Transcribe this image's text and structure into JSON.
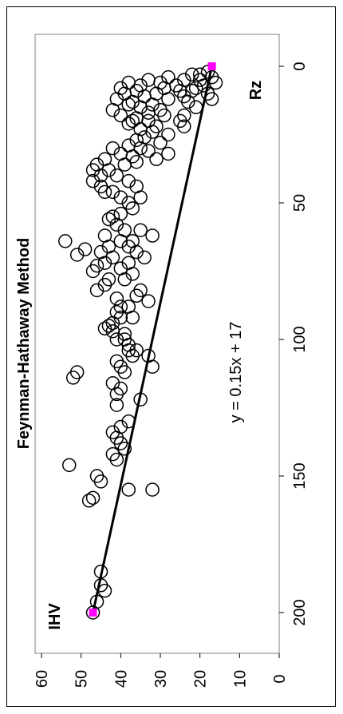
{
  "chart_data": {
    "type": "scatter",
    "title": "Feynman-Hathaway Method",
    "xlabel": "Rz",
    "ylabel": "IHV",
    "xlim": [
      0,
      200
    ],
    "ylim": [
      0,
      60
    ],
    "x_ticks": [
      "0",
      "50",
      "100",
      "150",
      "200"
    ],
    "y_ticks": [
      "0",
      "10",
      "20",
      "30",
      "40",
      "50",
      "60"
    ],
    "annotation": "y = 0.15x + 17",
    "trendline": {
      "slope": 0.15,
      "intercept": 17,
      "x_range": [
        0,
        200
      ]
    },
    "trend_endpoints": [
      {
        "x": 0,
        "y": 17
      },
      {
        "x": 200,
        "y": 47
      }
    ],
    "colors": {
      "points": "#000000",
      "trendline": "#000000",
      "endpoints": "#ff00ff"
    },
    "points": [
      [
        2,
        18
      ],
      [
        3,
        20
      ],
      [
        4,
        17
      ],
      [
        5,
        20
      ],
      [
        6,
        16
      ],
      [
        7,
        19
      ],
      [
        8,
        21
      ],
      [
        9,
        22
      ],
      [
        10,
        18
      ],
      [
        12,
        17
      ],
      [
        3,
        22
      ],
      [
        5,
        24
      ],
      [
        7,
        26
      ],
      [
        9,
        25
      ],
      [
        11,
        24
      ],
      [
        13,
        23
      ],
      [
        15,
        21
      ],
      [
        18,
        24
      ],
      [
        20,
        25
      ],
      [
        22,
        24
      ],
      [
        4,
        28
      ],
      [
        6,
        30
      ],
      [
        8,
        29
      ],
      [
        10,
        31
      ],
      [
        12,
        28
      ],
      [
        14,
        32
      ],
      [
        16,
        30
      ],
      [
        18,
        29
      ],
      [
        20,
        33
      ],
      [
        22,
        31
      ],
      [
        5,
        33
      ],
      [
        7,
        35
      ],
      [
        9,
        36
      ],
      [
        11,
        34
      ],
      [
        13,
        37
      ],
      [
        15,
        35
      ],
      [
        17,
        33
      ],
      [
        19,
        36
      ],
      [
        21,
        38
      ],
      [
        23,
        35
      ],
      [
        6,
        38
      ],
      [
        8,
        40
      ],
      [
        10,
        39
      ],
      [
        12,
        41
      ],
      [
        14,
        38
      ],
      [
        16,
        42
      ],
      [
        18,
        40
      ],
      [
        20,
        37
      ],
      [
        24,
        32
      ],
      [
        25,
        28
      ],
      [
        26,
        34
      ],
      [
        27,
        36
      ],
      [
        28,
        30
      ],
      [
        29,
        38
      ],
      [
        30,
        35
      ],
      [
        31,
        33
      ],
      [
        32,
        28
      ],
      [
        33,
        37
      ],
      [
        34,
        31
      ],
      [
        35,
        36
      ],
      [
        30,
        42
      ],
      [
        32,
        40
      ],
      [
        34,
        44
      ],
      [
        36,
        39
      ],
      [
        38,
        43
      ],
      [
        40,
        41
      ],
      [
        42,
        38
      ],
      [
        44,
        36
      ],
      [
        46,
        42
      ],
      [
        48,
        40
      ],
      [
        36,
        46
      ],
      [
        38,
        47
      ],
      [
        40,
        45
      ],
      [
        42,
        47
      ],
      [
        44,
        45
      ],
      [
        46,
        44
      ],
      [
        48,
        35
      ],
      [
        50,
        38
      ],
      [
        52,
        37
      ],
      [
        54,
        40
      ],
      [
        55,
        42
      ],
      [
        56,
        43
      ],
      [
        58,
        41
      ],
      [
        60,
        39
      ],
      [
        62,
        44
      ],
      [
        64,
        40
      ],
      [
        66,
        43
      ],
      [
        68,
        45
      ],
      [
        70,
        42
      ],
      [
        72,
        44
      ],
      [
        60,
        35
      ],
      [
        62,
        32
      ],
      [
        64,
        37
      ],
      [
        66,
        38
      ],
      [
        68,
        36
      ],
      [
        70,
        34
      ],
      [
        72,
        38
      ],
      [
        74,
        40
      ],
      [
        76,
        37
      ],
      [
        78,
        39
      ],
      [
        64,
        54
      ],
      [
        67,
        49
      ],
      [
        69,
        51
      ],
      [
        73,
        46
      ],
      [
        75,
        47
      ],
      [
        78,
        43
      ],
      [
        80,
        44
      ],
      [
        82,
        46
      ],
      [
        85,
        41
      ],
      [
        88,
        40
      ],
      [
        82,
        35
      ],
      [
        84,
        36
      ],
      [
        86,
        33
      ],
      [
        88,
        38
      ],
      [
        90,
        41
      ],
      [
        92,
        40
      ],
      [
        94,
        42
      ],
      [
        96,
        44
      ],
      [
        98,
        39
      ],
      [
        100,
        41
      ],
      [
        92,
        37
      ],
      [
        95,
        43
      ],
      [
        97,
        42
      ],
      [
        100,
        39
      ],
      [
        102,
        38
      ],
      [
        104,
        36
      ],
      [
        106,
        33
      ],
      [
        108,
        41
      ],
      [
        110,
        40
      ],
      [
        112,
        39
      ],
      [
        104,
        38
      ],
      [
        106,
        37
      ],
      [
        110,
        32
      ],
      [
        112,
        51
      ],
      [
        114,
        52
      ],
      [
        116,
        42
      ],
      [
        118,
        40
      ],
      [
        120,
        41
      ],
      [
        122,
        35
      ],
      [
        124,
        41
      ],
      [
        130,
        38
      ],
      [
        132,
        40
      ],
      [
        134,
        42
      ],
      [
        136,
        41
      ],
      [
        138,
        40
      ],
      [
        140,
        39
      ],
      [
        142,
        42
      ],
      [
        144,
        41
      ],
      [
        146,
        53
      ],
      [
        150,
        46
      ],
      [
        152,
        45
      ],
      [
        155,
        38
      ],
      [
        155,
        32
      ],
      [
        158,
        47
      ],
      [
        159,
        48
      ],
      [
        185,
        45
      ],
      [
        190,
        45
      ],
      [
        192,
        44
      ],
      [
        196,
        46
      ],
      [
        200,
        47
      ]
    ]
  }
}
